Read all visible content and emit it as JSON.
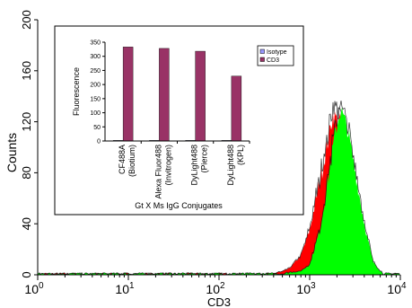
{
  "chart_data": [
    {
      "type": "area",
      "xlabel": "CD3",
      "ylabel": "Counts",
      "x_scale": "log",
      "xlim": [
        1,
        10000
      ],
      "ylim": [
        0,
        200
      ],
      "x_ticks": [
        {
          "value": 1,
          "base": "10",
          "exp": "0"
        },
        {
          "value": 10,
          "base": "10",
          "exp": "1"
        },
        {
          "value": 100,
          "base": "10",
          "exp": "2"
        },
        {
          "value": 1000,
          "base": "10",
          "exp": "3"
        },
        {
          "value": 10000,
          "base": "10",
          "exp": "4"
        }
      ],
      "y_ticks": [
        "0",
        "40",
        "80",
        "120",
        "160",
        "200"
      ],
      "series": [
        {
          "color": "#ff0000",
          "peak_x": 1600,
          "peak_y": 128,
          "x": [
            400,
            600,
            800,
            1000,
            1200,
            1500,
            1800,
            2200,
            2700,
            3200,
            4000,
            5000
          ],
          "y": [
            0,
            5,
            15,
            35,
            62,
            95,
            125,
            120,
            90,
            50,
            15,
            0
          ]
        },
        {
          "color": "#00ff00",
          "peak_x": 2100,
          "peak_y": 132,
          "x": [
            500,
            800,
            1000,
            1300,
            1600,
            1900,
            2200,
            2600,
            3200,
            4000,
            5000,
            6500
          ],
          "y": [
            0,
            3,
            8,
            35,
            75,
            110,
            130,
            115,
            80,
            40,
            10,
            0
          ]
        }
      ]
    },
    {
      "type": "bar",
      "xlabel": "Gt X Ms IgG Conjugates",
      "ylabel": "Fluorescence",
      "ylim": [
        0,
        350
      ],
      "y_ticks": [
        "0",
        "50",
        "100",
        "150",
        "200",
        "250",
        "300",
        "350"
      ],
      "categories": [
        {
          "line1": "CF488A",
          "line2": "(Biotium)"
        },
        {
          "line1": "Alexa Fluor488",
          "line2": "(Invitrogen)"
        },
        {
          "line1": "DyLight488",
          "line2": "(Pierce)"
        },
        {
          "line1": "DyLight488",
          "line2": "(KPL)"
        }
      ],
      "series": [
        {
          "name": "Isotype",
          "color": "#9999ff",
          "values": [
            2,
            2,
            2,
            2
          ]
        },
        {
          "name": "CD3",
          "color": "#993366",
          "values": [
            333,
            328,
            318,
            230
          ]
        }
      ],
      "legend": "top-right"
    }
  ]
}
